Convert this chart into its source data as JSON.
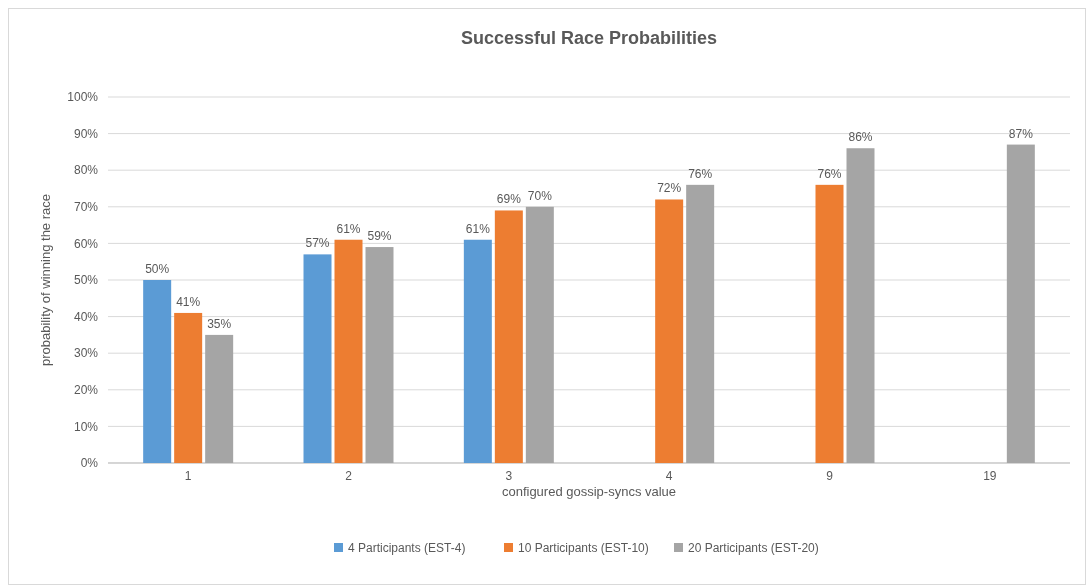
{
  "chart_data": {
    "type": "bar",
    "title": "Successful Race Probabilities",
    "xlabel": "configured gossip-syncs value",
    "ylabel": "probability of winning the race",
    "categories": [
      "1",
      "2",
      "3",
      "4",
      "9",
      "19"
    ],
    "series": [
      {
        "name": "4 Participants (EST-4)",
        "color": "#5b9bd5",
        "values": [
          50,
          57,
          61,
          null,
          null,
          null
        ],
        "value_labels": [
          "50%",
          "57%",
          "61%",
          null,
          null,
          null
        ]
      },
      {
        "name": "10 Participants (EST-10)",
        "color": "#ed7d31",
        "values": [
          41,
          61,
          69,
          72,
          76,
          null
        ],
        "value_labels": [
          "41%",
          "61%",
          "69%",
          "72%",
          "76%",
          null
        ]
      },
      {
        "name": "20 Participants (EST-20)",
        "color": "#a5a5a5",
        "values": [
          35,
          59,
          70,
          76,
          86,
          87
        ],
        "value_labels": [
          "35%",
          "59%",
          "70%",
          "76%",
          "86%",
          "87%"
        ]
      }
    ],
    "ylim": [
      0,
      100
    ],
    "yticks": [
      {
        "value": 0,
        "label": "0%"
      },
      {
        "value": 10,
        "label": "10%"
      },
      {
        "value": 20,
        "label": "20%"
      },
      {
        "value": 30,
        "label": "30%"
      },
      {
        "value": 40,
        "label": "40%"
      },
      {
        "value": 50,
        "label": "50%"
      },
      {
        "value": 60,
        "label": "60%"
      },
      {
        "value": 70,
        "label": "70%"
      },
      {
        "value": 80,
        "label": "80%"
      },
      {
        "value": 90,
        "label": "90%"
      },
      {
        "value": 100,
        "label": "100%"
      }
    ],
    "grid": "y",
    "legend": "bottom"
  }
}
